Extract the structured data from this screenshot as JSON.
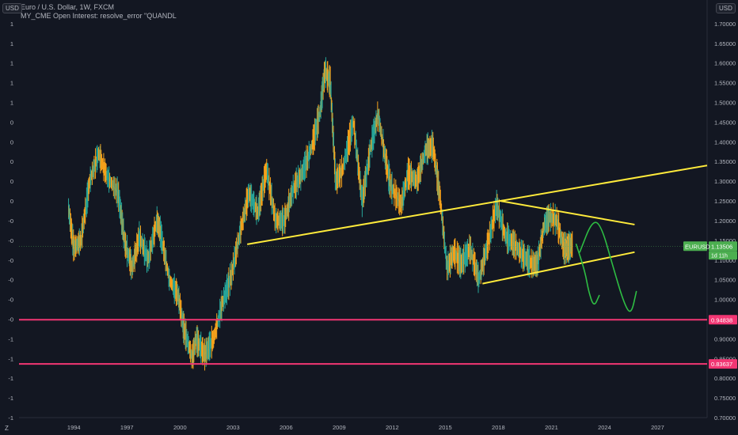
{
  "header": {
    "title": "Euro / U.S. Dollar, 1W, FXCM",
    "indicator": "MY_CME Open Interest: resolve_error \"QUANDL"
  },
  "left_scale_label": "USD",
  "right_scale_label": "USD",
  "bottom_left_label": "Z",
  "chart_data": {
    "type": "line",
    "symbol": "EURUSD",
    "last_price": "1.13506",
    "countdown": "1d 11h",
    "x_ticks": [
      "1994",
      "1997",
      "2000",
      "2003",
      "2006",
      "2009",
      "2012",
      "2015",
      "2018",
      "2021",
      "2024",
      "2027"
    ],
    "y_ticks": [
      "1.70000",
      "1.65000",
      "1.60000",
      "1.55000",
      "1.50000",
      "1.45000",
      "1.40000",
      "1.35000",
      "1.30000",
      "1.25000",
      "1.20000",
      "1.15000",
      "1.10000",
      "1.05000",
      "1.00000",
      "0.95000",
      "0.90000",
      "0.85000",
      "0.80000",
      "0.75000",
      "0.70000"
    ],
    "left_ticks": [
      "1",
      "1",
      "1",
      "1",
      "1",
      "0",
      "0",
      "0",
      "0",
      "0",
      "-0",
      "-0",
      "-0",
      "-0",
      "-0",
      "-0",
      "-1",
      "-1",
      "-1",
      "-1",
      "-1"
    ],
    "ylim": [
      0.7,
      1.76
    ],
    "xlim": [
      1991.0,
      2029.9
    ],
    "series": [
      {
        "x": [
          1993.8,
          1994.1,
          1994.5,
          1995.0,
          1995.5,
          1996.0,
          1996.6,
          1997.0,
          1997.4,
          1997.8,
          1998.3,
          1998.8,
          1999.0,
          1999.5,
          2000.0,
          2000.3,
          2000.8,
          2001.0,
          2001.5,
          2002.0,
          2002.5,
          2003.0,
          2003.5,
          2004.0,
          2004.5,
          2005.0,
          2005.5,
          2006.0,
          2006.5,
          2007.0,
          2007.5,
          2008.0,
          2008.3,
          2008.6,
          2008.9,
          2009.3,
          2009.9,
          2010.4,
          2010.9,
          2011.3,
          2011.7,
          2012.0,
          2012.6,
          2013.0,
          2013.5,
          2014.0,
          2014.4,
          2014.8,
          2015.2,
          2015.6,
          2016.0,
          2016.5,
          2017.0,
          2017.5,
          2018.0,
          2018.5,
          2019.0,
          2019.5,
          2020.0,
          2020.3,
          2020.7,
          2021.0,
          2021.4,
          2021.8,
          2022.0,
          2022.3
        ],
        "y": [
          1.23,
          1.13,
          1.15,
          1.3,
          1.37,
          1.31,
          1.27,
          1.14,
          1.08,
          1.16,
          1.1,
          1.2,
          1.17,
          1.05,
          1.01,
          0.93,
          0.85,
          0.9,
          0.86,
          0.9,
          0.99,
          1.06,
          1.17,
          1.27,
          1.22,
          1.33,
          1.2,
          1.2,
          1.28,
          1.32,
          1.38,
          1.47,
          1.58,
          1.55,
          1.3,
          1.33,
          1.45,
          1.25,
          1.39,
          1.47,
          1.36,
          1.29,
          1.24,
          1.32,
          1.3,
          1.38,
          1.39,
          1.26,
          1.08,
          1.12,
          1.09,
          1.13,
          1.05,
          1.14,
          1.24,
          1.16,
          1.14,
          1.11,
          1.09,
          1.09,
          1.19,
          1.21,
          1.2,
          1.13,
          1.13,
          1.14
        ]
      }
    ],
    "h_lines": [
      {
        "label": "0.94838",
        "value": 0.94838,
        "color": "#f23673"
      },
      {
        "label": "0.83637",
        "value": 0.83637,
        "color": "#f23673"
      }
    ],
    "trend_lines": [
      {
        "points": [
          [
            2003.9,
            1.14
          ],
          [
            2029.9,
            1.34
          ]
        ],
        "color": "#ffeb3b"
      },
      {
        "points": [
          [
            2018.2,
            1.25
          ],
          [
            2025.8,
            1.19
          ]
        ],
        "color": "#ffeb3b"
      },
      {
        "points": [
          [
            2017.2,
            1.04
          ],
          [
            2025.8,
            1.12
          ]
        ],
        "color": "#ffeb3b"
      }
    ],
    "projection_drawings": [
      {
        "points": [
          [
            2022.5,
            1.14
          ],
          [
            2023.0,
            1.07
          ],
          [
            2023.2,
            1.02
          ],
          [
            2023.5,
            0.98
          ],
          [
            2023.8,
            1.01
          ]
        ],
        "color": "#2ebd43"
      },
      {
        "points": [
          [
            2022.7,
            1.12
          ],
          [
            2023.4,
            1.2
          ],
          [
            2023.9,
            1.19
          ],
          [
            2024.6,
            1.08
          ],
          [
            2025.2,
            0.99
          ],
          [
            2025.6,
            0.96
          ],
          [
            2025.9,
            1.02
          ]
        ],
        "color": "#2ebd43"
      }
    ]
  }
}
